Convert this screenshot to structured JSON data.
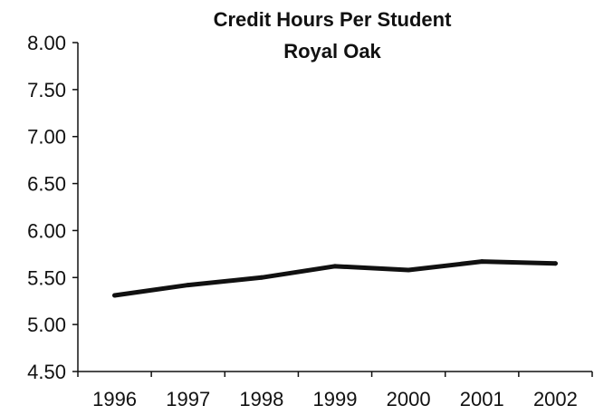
{
  "chart_data": {
    "type": "line",
    "title": "Credit Hours Per Student",
    "subtitle": "Royal Oak",
    "xlabel": "",
    "ylabel": "",
    "categories": [
      "1996",
      "1997",
      "1998",
      "1999",
      "2000",
      "2001",
      "2002"
    ],
    "series": [
      {
        "values": [
          5.31,
          5.42,
          5.5,
          5.62,
          5.58,
          5.67,
          5.65
        ]
      }
    ],
    "ylim": [
      4.5,
      8.0
    ],
    "yticks": [
      "8.00",
      "7.50",
      "7.00",
      "6.50",
      "6.00",
      "5.50",
      "5.00",
      "4.50"
    ],
    "grid": false,
    "legend": "none",
    "line_color": "#111111"
  }
}
